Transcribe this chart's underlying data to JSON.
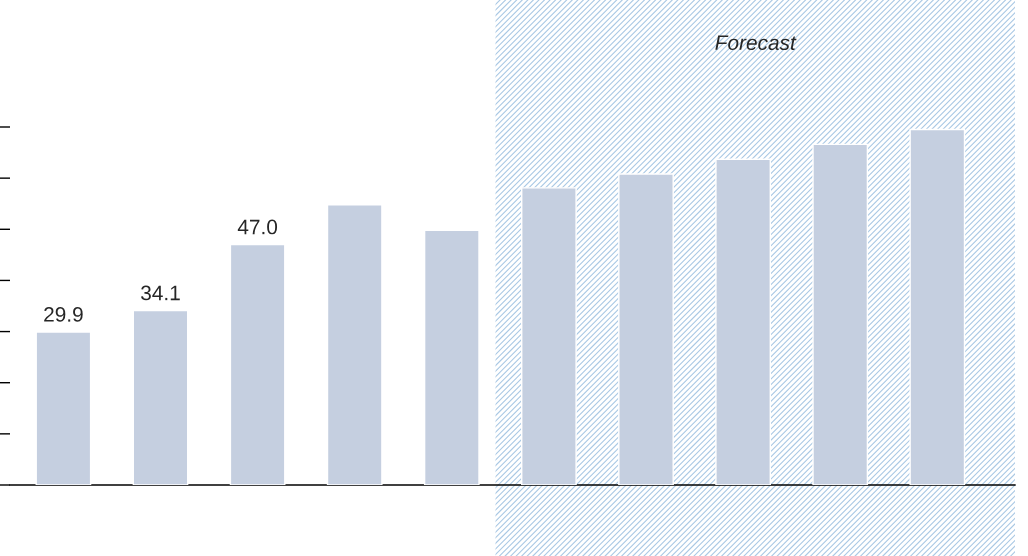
{
  "chart_data": {
    "type": "bar",
    "categories": [
      null,
      null,
      null,
      null,
      null,
      null,
      null,
      null,
      null,
      null
    ],
    "values": [
      29.9,
      34.1,
      47.0,
      54.8,
      49.8,
      58.1,
      60.8,
      63.7,
      66.6,
      69.5
    ],
    "value_labels": [
      "29.9",
      "34.1",
      "47.0",
      null,
      null,
      null,
      null,
      null,
      null,
      null
    ],
    "color": "#c5cfe0",
    "ylim": [
      0,
      70
    ],
    "yticks": [
      {
        "value": 0,
        "label": null
      },
      {
        "value": 10,
        "label": null
      },
      {
        "value": 20,
        "label": null
      },
      {
        "value": 30,
        "label": null
      },
      {
        "value": 40,
        "label": null
      },
      {
        "value": 50,
        "label": null
      },
      {
        "value": 60,
        "label": null
      },
      {
        "value": 70,
        "label": null
      }
    ],
    "annotations": [
      "Forecast"
    ],
    "grid": false
  }
}
